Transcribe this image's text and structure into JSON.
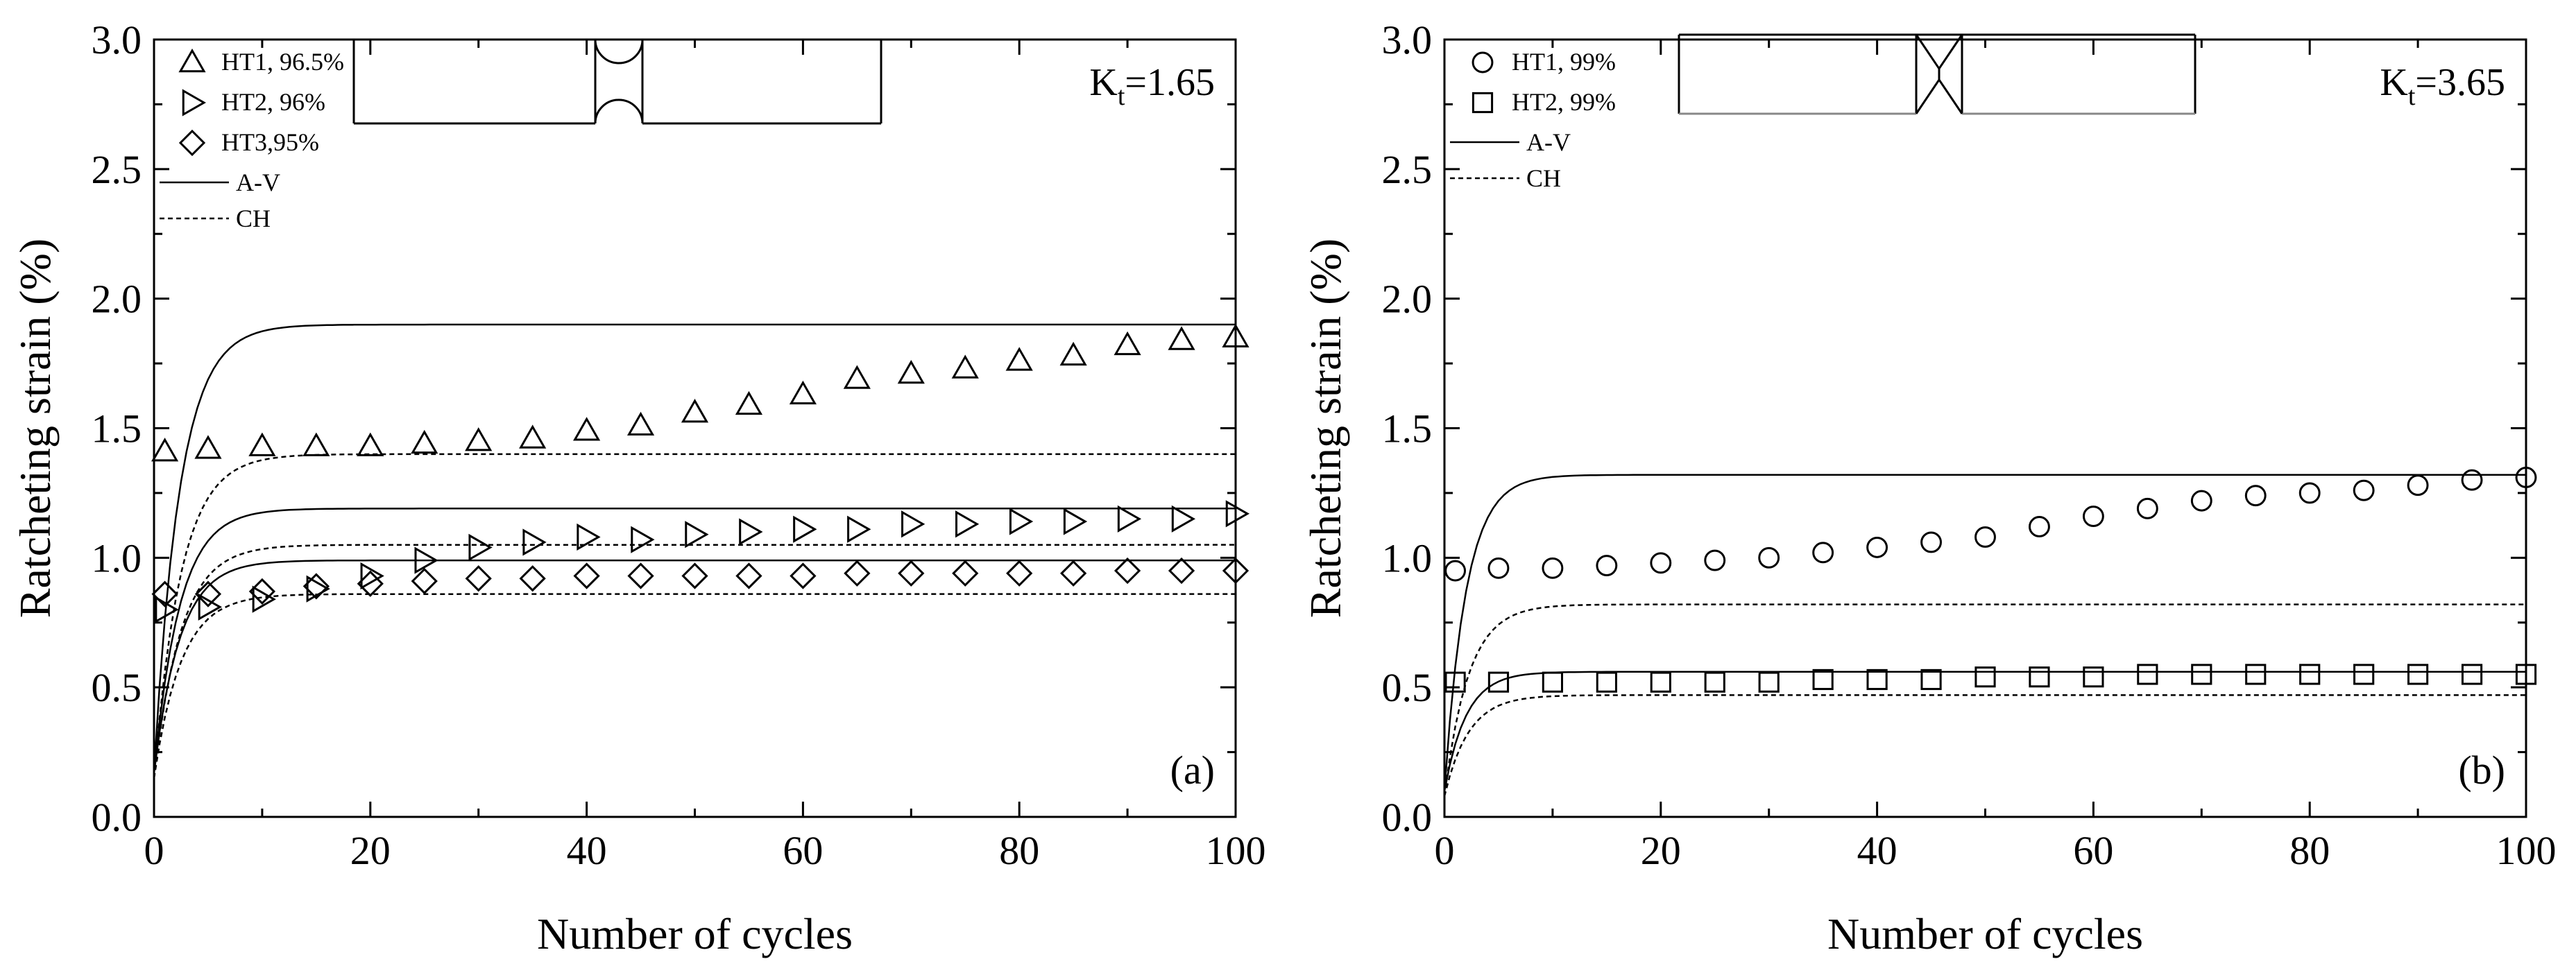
{
  "chart_data": [
    {
      "type": "scatter",
      "panel_label": "(a)",
      "kt_label": "K",
      "kt_sub": "t",
      "kt_value": "=1.65",
      "xlabel": "Number of cycles",
      "ylabel": "Ratcheting strain (%)",
      "xlim": [
        0,
        100
      ],
      "ylim": [
        0.0,
        3.0
      ],
      "xticks": [
        "0",
        "20",
        "40",
        "60",
        "80",
        "100"
      ],
      "yticks": [
        "0.0",
        "0.5",
        "1.0",
        "1.5",
        "2.0",
        "2.5",
        "3.0"
      ],
      "legend_position": "top-left",
      "series": [
        {
          "name": "HT1, 96.5%",
          "marker": "triangle-up",
          "x": [
            1,
            5,
            10,
            15,
            20,
            25,
            30,
            35,
            40,
            45,
            50,
            55,
            60,
            65,
            70,
            75,
            80,
            85,
            90,
            95,
            100
          ],
          "y": [
            1.41,
            1.42,
            1.43,
            1.43,
            1.43,
            1.44,
            1.45,
            1.46,
            1.49,
            1.51,
            1.56,
            1.59,
            1.63,
            1.69,
            1.71,
            1.73,
            1.76,
            1.78,
            1.82,
            1.84,
            1.85
          ]
        },
        {
          "name": "HT2, 96%",
          "marker": "triangle-right",
          "x": [
            1,
            5,
            10,
            15,
            20,
            25,
            30,
            35,
            40,
            45,
            50,
            55,
            60,
            65,
            70,
            75,
            80,
            85,
            90,
            95,
            100
          ],
          "y": [
            0.8,
            0.81,
            0.84,
            0.88,
            0.93,
            0.99,
            1.04,
            1.06,
            1.08,
            1.07,
            1.09,
            1.1,
            1.11,
            1.11,
            1.13,
            1.13,
            1.14,
            1.14,
            1.15,
            1.15,
            1.17
          ]
        },
        {
          "name": "HT3,95%",
          "marker": "diamond",
          "x": [
            1,
            5,
            10,
            15,
            20,
            25,
            30,
            35,
            40,
            45,
            50,
            55,
            60,
            65,
            70,
            75,
            80,
            85,
            90,
            95,
            100
          ],
          "y": [
            0.86,
            0.86,
            0.87,
            0.89,
            0.9,
            0.91,
            0.92,
            0.92,
            0.93,
            0.93,
            0.93,
            0.93,
            0.93,
            0.94,
            0.94,
            0.94,
            0.94,
            0.94,
            0.95,
            0.95,
            0.95
          ]
        }
      ],
      "curves": [
        {
          "name": "A-V",
          "style": "solid",
          "start": 0.17,
          "plateau": 1.9,
          "rate": 0.42
        },
        {
          "name": "A-V",
          "style": "solid",
          "start": 0.17,
          "plateau": 1.19,
          "rate": 0.42
        },
        {
          "name": "A-V",
          "style": "solid",
          "start": 0.17,
          "plateau": 0.99,
          "rate": 0.42
        },
        {
          "name": "CH",
          "style": "dashed",
          "start": 0.15,
          "plateau": 1.4,
          "rate": 0.4
        },
        {
          "name": "CH",
          "style": "dashed",
          "start": 0.15,
          "plateau": 1.05,
          "rate": 0.4
        },
        {
          "name": "CH",
          "style": "dashed",
          "start": 0.15,
          "plateau": 0.86,
          "rate": 0.4
        }
      ],
      "legend_lines": [
        "A-V",
        "CH"
      ]
    },
    {
      "type": "scatter",
      "panel_label": "(b)",
      "kt_label": "K",
      "kt_sub": "t",
      "kt_value": "=3.65",
      "xlabel": "Number of cycles",
      "ylabel": "Ratcheting strain (%)",
      "xlim": [
        0,
        100
      ],
      "ylim": [
        0.0,
        3.0
      ],
      "xticks": [
        "0",
        "20",
        "40",
        "60",
        "80",
        "100"
      ],
      "yticks": [
        "0.0",
        "0.5",
        "1.0",
        "1.5",
        "2.0",
        "2.5",
        "3.0"
      ],
      "legend_position": "top-left",
      "series": [
        {
          "name": "HT1, 99%",
          "marker": "circle",
          "x": [
            1,
            5,
            10,
            15,
            20,
            25,
            30,
            35,
            40,
            45,
            50,
            55,
            60,
            65,
            70,
            75,
            80,
            85,
            90,
            95,
            100
          ],
          "y": [
            0.95,
            0.96,
            0.96,
            0.97,
            0.98,
            0.99,
            1.0,
            1.02,
            1.04,
            1.06,
            1.08,
            1.12,
            1.16,
            1.19,
            1.22,
            1.24,
            1.25,
            1.26,
            1.28,
            1.3,
            1.31
          ]
        },
        {
          "name": "HT2, 99%",
          "marker": "square",
          "x": [
            1,
            5,
            10,
            15,
            20,
            25,
            30,
            35,
            40,
            45,
            50,
            55,
            60,
            65,
            70,
            75,
            80,
            85,
            90,
            95,
            100
          ],
          "y": [
            0.52,
            0.52,
            0.52,
            0.52,
            0.52,
            0.52,
            0.52,
            0.53,
            0.53,
            0.53,
            0.54,
            0.54,
            0.54,
            0.55,
            0.55,
            0.55,
            0.55,
            0.55,
            0.55,
            0.55,
            0.55
          ]
        }
      ],
      "curves": [
        {
          "name": "A-V",
          "style": "solid",
          "start": 0.1,
          "plateau": 1.32,
          "rate": 0.5
        },
        {
          "name": "A-V",
          "style": "solid",
          "start": 0.1,
          "plateau": 0.56,
          "rate": 0.5
        },
        {
          "name": "CH",
          "style": "dashed",
          "start": 0.08,
          "plateau": 0.82,
          "rate": 0.45
        },
        {
          "name": "CH",
          "style": "dashed",
          "start": 0.08,
          "plateau": 0.47,
          "rate": 0.45
        }
      ],
      "legend_lines": [
        "A-V",
        "CH"
      ]
    }
  ]
}
